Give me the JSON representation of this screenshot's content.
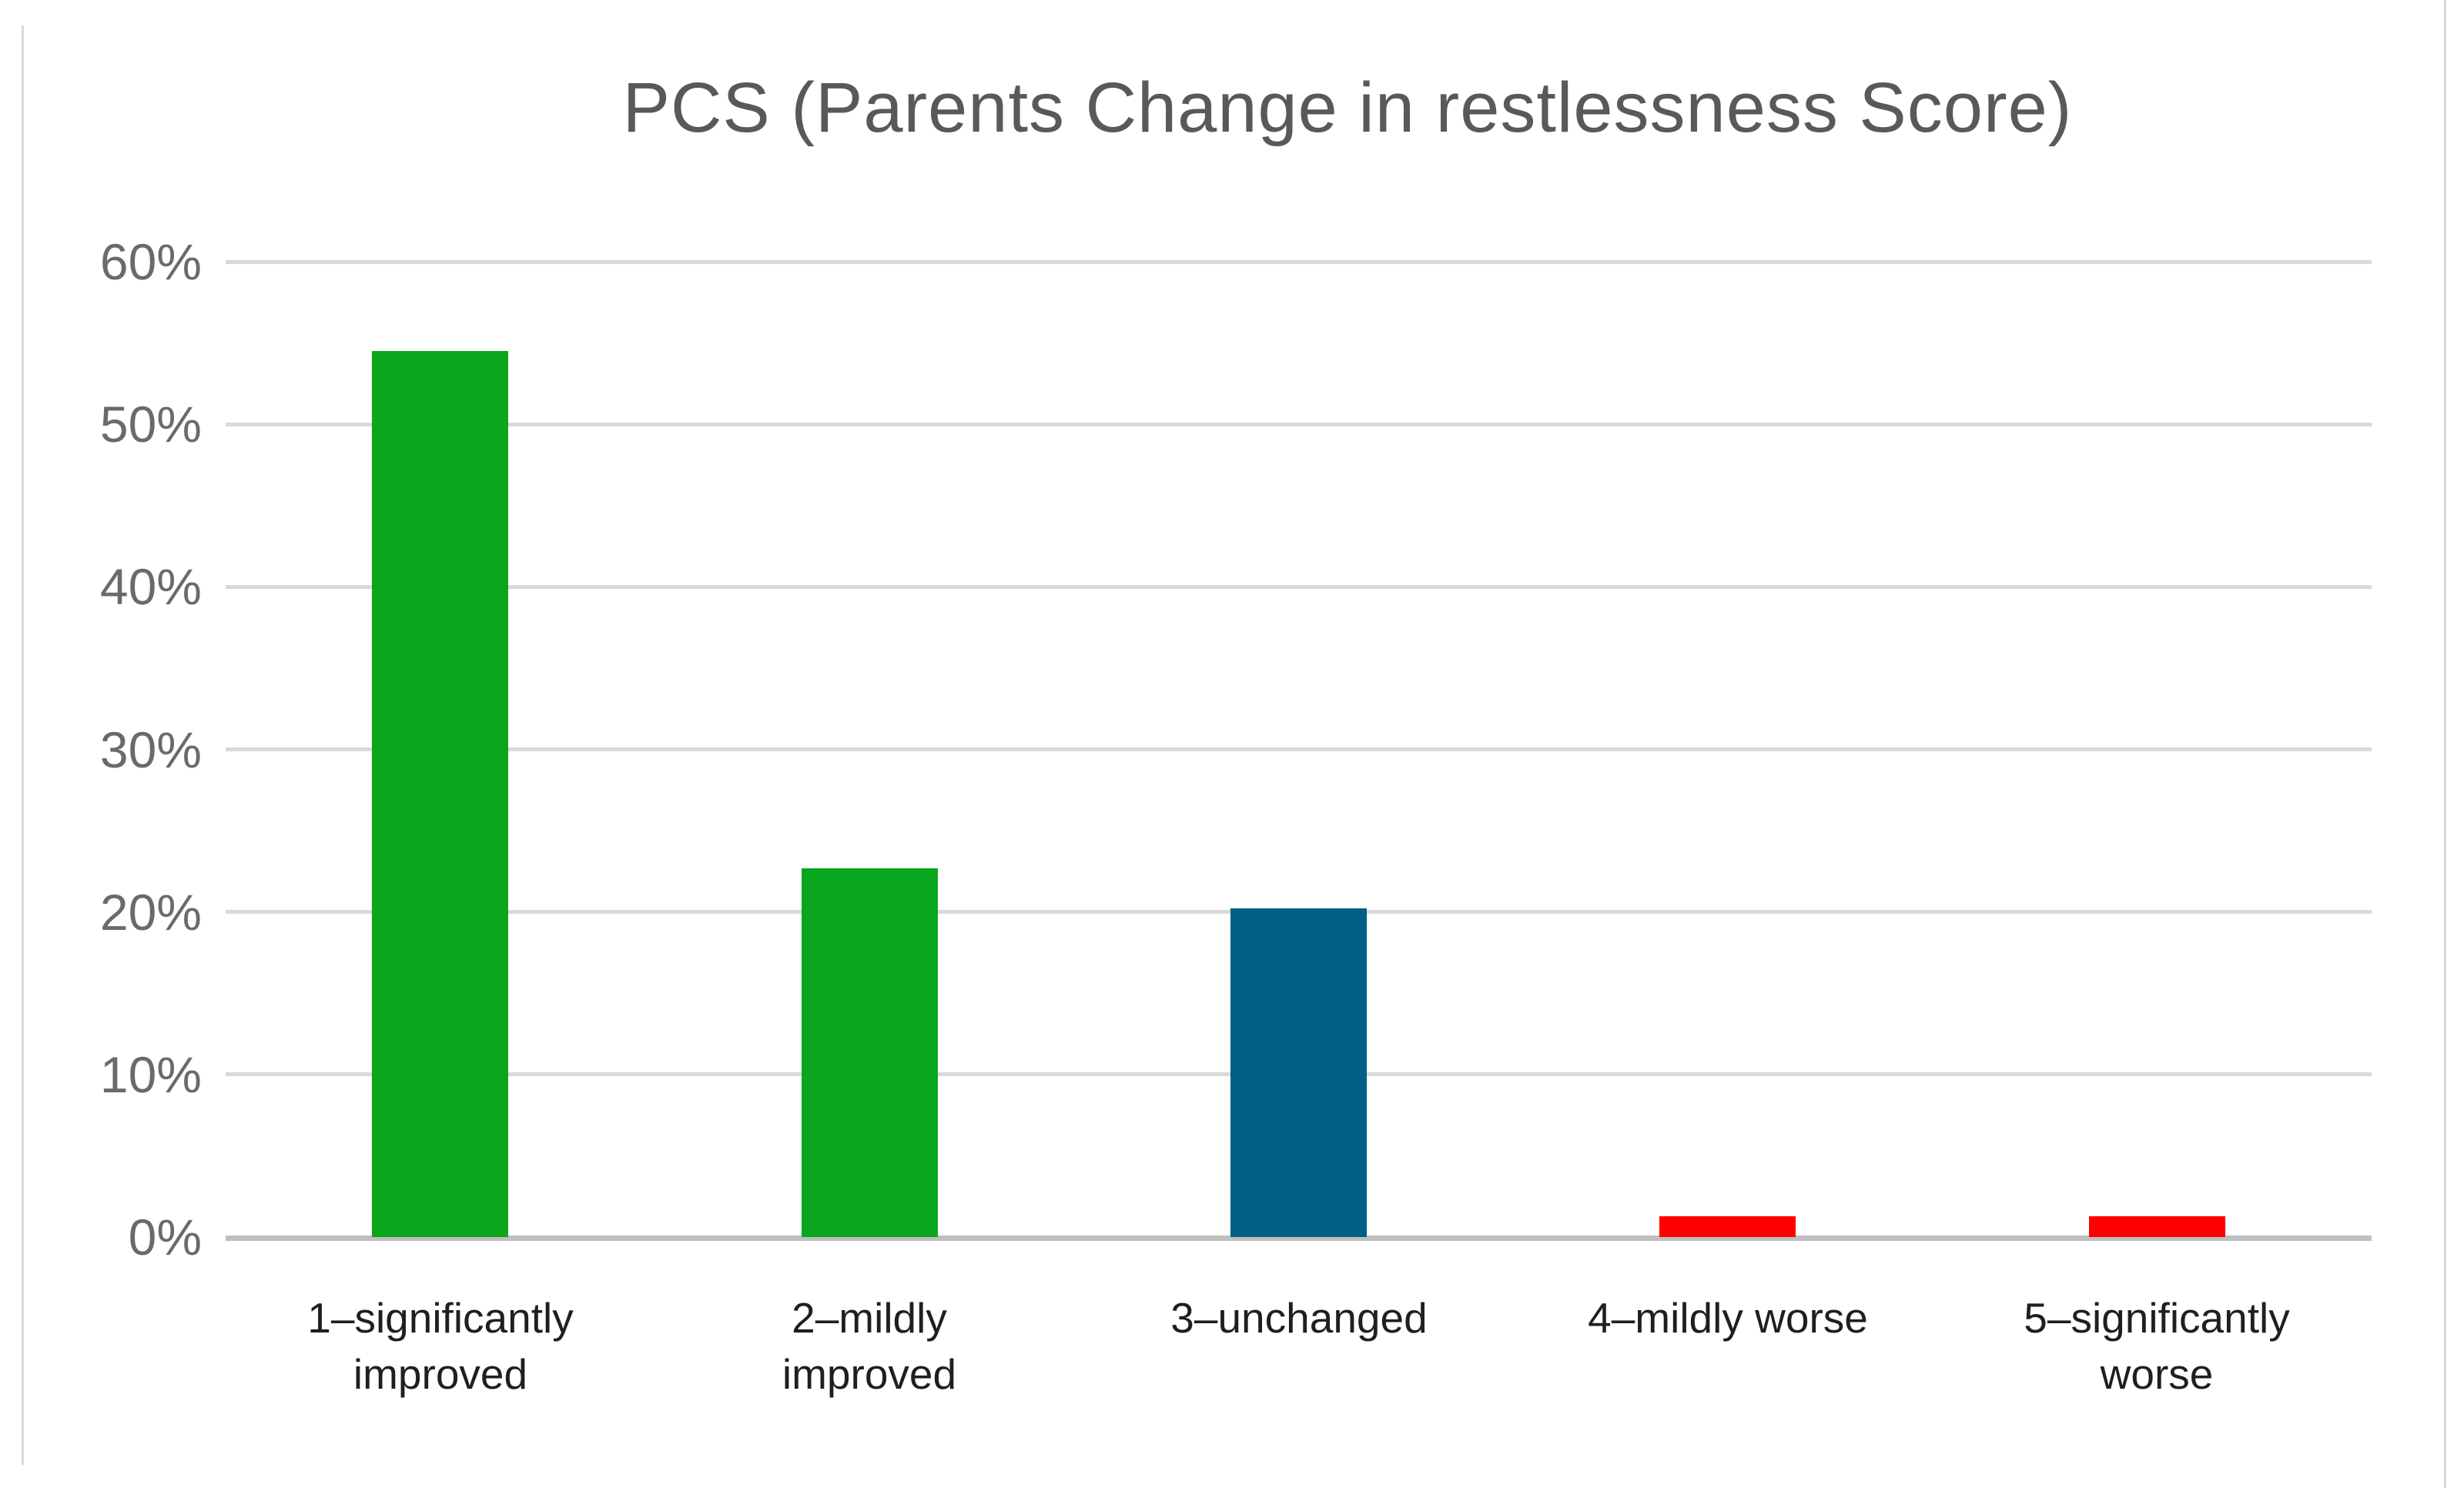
{
  "chart_data": {
    "type": "bar",
    "title": "PCS (Parents Change in restlessness Score)",
    "categories": [
      "1–significantly improved",
      "2–mildly improved",
      "3–unchanged",
      "4–mildly worse",
      "5–significantly worse"
    ],
    "category_lines": [
      [
        "1–significantly",
        "improved"
      ],
      [
        "2–mildly",
        "improved"
      ],
      [
        "3–unchanged"
      ],
      [
        "4–mildly worse"
      ],
      [
        "5–significantly",
        "worse"
      ]
    ],
    "values": [
      54.5,
      22.7,
      20.2,
      1.3,
      1.3
    ],
    "unit": "%",
    "bar_colors": [
      "#0aa61d",
      "#0aa61d",
      "#005f85",
      "#fe0000",
      "#fe0000"
    ],
    "xlabel": "",
    "ylabel": "",
    "y_axis": {
      "min": 0,
      "max": 60,
      "tick_labels": [
        "60%",
        "50%",
        "40%",
        "30%",
        "20%",
        "10%",
        "0%"
      ],
      "tick_values": [
        60,
        50,
        40,
        30,
        20,
        10,
        0
      ]
    },
    "grid": true,
    "legend": false
  },
  "colors": {
    "background": "#ffffff",
    "page_border": "#d9d9d9",
    "gridline": "#d9d9d9",
    "axis_line": "#bfbfbf",
    "title_text": "#595959",
    "tick_text": "#6a6a6a",
    "category_text": "#1f1f1f"
  }
}
